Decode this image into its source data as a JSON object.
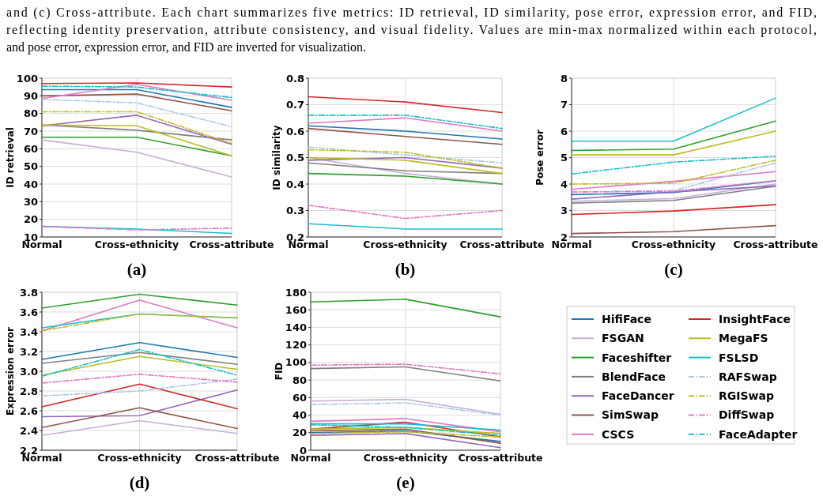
{
  "chart_data": [
    {
      "type": "line",
      "title": "(a)",
      "ylabel": "ID retrieval",
      "categories": [
        "Normal",
        "Cross-ethnicity",
        "Cross-attribute"
      ],
      "ylim": [
        10,
        100
      ],
      "yticks": [
        10,
        20,
        30,
        40,
        50,
        60,
        70,
        80,
        90,
        100
      ],
      "grid": true,
      "legend": false,
      "annotations": [
        "and (c) Cross-attribute. Each chart summarizes five metrics: ID retrieval, ID similarity, pose error, expression error, and FID,",
        "reflecting identity preservation, attribute consistency, and visual fidelity. Values are min-max normalized within each protocol,",
        "and pose error, expression error, and FID are inverted for visualization."
      ],
      "series": [
        {
          "color": "#1f77b4",
          "line_style": "solid",
          "values": [
            93.5,
            93.5,
            83.5
          ]
        },
        {
          "color": "#c5b0d5",
          "line_style": "solid",
          "values": [
            65,
            58,
            44
          ]
        },
        {
          "color": "#2ca02c",
          "line_style": "solid",
          "values": [
            66.5,
            66.5,
            56
          ]
        },
        {
          "color": "#7f7f7f",
          "line_style": "solid",
          "values": [
            73.5,
            70.5,
            65
          ]
        },
        {
          "color": "#9467bd",
          "line_style": "solid",
          "values": [
            73,
            79,
            62.5
          ]
        },
        {
          "color": "#8c564b",
          "line_style": "solid",
          "values": [
            90,
            91,
            81.5
          ]
        },
        {
          "color": "#e377c2",
          "line_style": "solid",
          "values": [
            88.5,
            96.5,
            87.5
          ]
        },
        {
          "color": "#d62728",
          "line_style": "solid",
          "values": [
            97,
            97.3,
            95
          ]
        },
        {
          "color": "#bcbd22",
          "line_style": "solid",
          "values": [
            73.5,
            73,
            56
          ]
        },
        {
          "color": "#17becf",
          "line_style": "solid",
          "values": [
            16,
            14.5,
            12
          ]
        },
        {
          "color": "#aec7e8",
          "line_style": "dashed",
          "values": [
            88,
            86,
            72.5
          ]
        },
        {
          "color": "#bcbd22",
          "line_style": "dashed",
          "values": [
            81,
            81,
            63
          ]
        },
        {
          "color": "#e377c2",
          "line_style": "dashed",
          "values": [
            16,
            14,
            15
          ]
        },
        {
          "color": "#17becf",
          "line_style": "dashed",
          "values": [
            95.5,
            95,
            89
          ]
        }
      ]
    },
    {
      "type": "line",
      "title": "(b)",
      "ylabel": "ID similarity",
      "categories": [
        "Normal",
        "Cross-ethnicity",
        "Cross-attribute"
      ],
      "ylim": [
        0.2,
        0.8
      ],
      "yticks": [
        0.2,
        0.3,
        0.4,
        0.5,
        0.6,
        0.7,
        0.8
      ],
      "grid": true,
      "legend": false,
      "series": [
        {
          "color": "#1f77b4",
          "line_style": "solid",
          "values": [
            0.62,
            0.6,
            0.57
          ]
        },
        {
          "color": "#c5b0d5",
          "line_style": "solid",
          "values": [
            0.5,
            0.44,
            0.4
          ]
        },
        {
          "color": "#2ca02c",
          "line_style": "solid",
          "values": [
            0.44,
            0.43,
            0.4
          ]
        },
        {
          "color": "#7f7f7f",
          "line_style": "solid",
          "values": [
            0.48,
            0.45,
            0.44
          ]
        },
        {
          "color": "#9467bd",
          "line_style": "solid",
          "values": [
            0.49,
            0.5,
            0.46
          ]
        },
        {
          "color": "#8c564b",
          "line_style": "solid",
          "values": [
            0.61,
            0.58,
            0.55
          ]
        },
        {
          "color": "#e377c2",
          "line_style": "solid",
          "values": [
            0.63,
            0.65,
            0.6
          ]
        },
        {
          "color": "#d62728",
          "line_style": "solid",
          "values": [
            0.73,
            0.71,
            0.67
          ]
        },
        {
          "color": "#bcbd22",
          "line_style": "solid",
          "values": [
            0.5,
            0.49,
            0.44
          ]
        },
        {
          "color": "#17becf",
          "line_style": "solid",
          "values": [
            0.25,
            0.23,
            0.23
          ]
        },
        {
          "color": "#aec7e8",
          "line_style": "dashed",
          "values": [
            0.54,
            0.51,
            0.48
          ]
        },
        {
          "color": "#bcbd22",
          "line_style": "dashed",
          "values": [
            0.53,
            0.52,
            0.46
          ]
        },
        {
          "color": "#e377c2",
          "line_style": "dashed",
          "values": [
            0.32,
            0.27,
            0.3
          ]
        },
        {
          "color": "#17becf",
          "line_style": "dashed",
          "values": [
            0.66,
            0.66,
            0.61
          ]
        }
      ]
    },
    {
      "type": "line",
      "title": "(c)",
      "ylabel": "Pose error",
      "categories": [
        "Normal",
        "Cross-ethnicity",
        "Cross-attribute"
      ],
      "ylim": [
        2,
        8
      ],
      "yticks": [
        2,
        3,
        4,
        5,
        6,
        7,
        8
      ],
      "grid": true,
      "legend": false,
      "series": [
        {
          "color": "#1f77b4",
          "line_style": "solid",
          "values": [
            3.6,
            3.68,
            4.12
          ]
        },
        {
          "color": "#c5b0d5",
          "line_style": "solid",
          "values": [
            3.35,
            3.45,
            4
          ]
        },
        {
          "color": "#2ca02c",
          "line_style": "solid",
          "values": [
            5.27,
            5.32,
            6.38
          ]
        },
        {
          "color": "#7f7f7f",
          "line_style": "solid",
          "values": [
            3.28,
            3.38,
            3.92
          ]
        },
        {
          "color": "#9467bd",
          "line_style": "solid",
          "values": [
            3.43,
            3.7,
            3.93
          ]
        },
        {
          "color": "#8c564b",
          "line_style": "solid",
          "values": [
            2.13,
            2.2,
            2.43
          ]
        },
        {
          "color": "#e377c2",
          "line_style": "solid",
          "values": [
            3.8,
            4.1,
            4.47
          ]
        },
        {
          "color": "#d62728",
          "line_style": "solid",
          "values": [
            2.85,
            2.98,
            3.22
          ]
        },
        {
          "color": "#bcbd22",
          "line_style": "solid",
          "values": [
            5.1,
            5.1,
            6
          ]
        },
        {
          "color": "#17becf",
          "line_style": "solid",
          "values": [
            5.62,
            5.62,
            7.25
          ]
        },
        {
          "color": "#aec7e8",
          "line_style": "dashed",
          "values": [
            3.7,
            3.75,
            4.8
          ]
        },
        {
          "color": "#bcbd22",
          "line_style": "dashed",
          "values": [
            4,
            4.03,
            4.9
          ]
        },
        {
          "color": "#e377c2",
          "line_style": "dashed",
          "values": [
            3.7,
            3.73,
            4.13
          ]
        },
        {
          "color": "#17becf",
          "line_style": "dashed",
          "values": [
            4.38,
            4.83,
            5.05
          ]
        }
      ]
    },
    {
      "type": "line",
      "title": "(d)",
      "ylabel": "Expression error",
      "categories": [
        "Normal",
        "Cross-ethnicity",
        "Cross-attribute"
      ],
      "ylim": [
        2.2,
        3.8
      ],
      "yticks": [
        {
          "value": 2.2,
          "label": "2.2"
        },
        {
          "value": 2.4,
          "label": "2.4"
        },
        {
          "value": 2.6,
          "label": "2.6"
        },
        {
          "value": 2.8,
          "label": "2.8"
        },
        {
          "value": 3,
          "label": "3.0"
        },
        {
          "value": 3.2,
          "label": "3.2"
        },
        {
          "value": 3.4,
          "label": "3.4"
        },
        {
          "value": 3.6,
          "label": "3.6"
        },
        {
          "value": 3.8,
          "label": "3.8"
        }
      ],
      "grid": true,
      "legend": false,
      "series": [
        {
          "color": "#1f77b4",
          "line_style": "solid",
          "values": [
            3.12,
            3.29,
            3.14
          ]
        },
        {
          "color": "#c5b0d5",
          "line_style": "solid",
          "values": [
            2.35,
            2.5,
            2.37
          ]
        },
        {
          "color": "#2ca02c",
          "line_style": "solid",
          "values": [
            3.64,
            3.78,
            3.67
          ]
        },
        {
          "color": "#7f7f7f",
          "line_style": "solid",
          "values": [
            3.08,
            3.19,
            3.07
          ]
        },
        {
          "color": "#9467bd",
          "line_style": "solid",
          "values": [
            2.54,
            2.55,
            2.81
          ]
        },
        {
          "color": "#8c564b",
          "line_style": "solid",
          "values": [
            2.43,
            2.63,
            2.42
          ]
        },
        {
          "color": "#e377c2",
          "line_style": "solid",
          "values": [
            3.41,
            3.72,
            3.44
          ]
        },
        {
          "color": "#d62728",
          "line_style": "solid",
          "values": [
            2.64,
            2.87,
            2.62
          ]
        },
        {
          "color": "#bcbd22",
          "line_style": "solid",
          "values": [
            2.96,
            3.15,
            3.02
          ]
        },
        {
          "color": "#17becf",
          "line_style": "solid",
          "values": [
            3.44,
            3.58,
            3.54
          ]
        },
        {
          "color": "#aec7e8",
          "line_style": "dashed",
          "values": [
            2.75,
            2.8,
            2.92
          ]
        },
        {
          "color": "#bcbd22",
          "line_style": "dashed",
          "values": [
            3.41,
            3.58,
            3.54
          ]
        },
        {
          "color": "#e377c2",
          "line_style": "dashed",
          "values": [
            2.88,
            2.97,
            2.89
          ]
        },
        {
          "color": "#17becf",
          "line_style": "dashed",
          "values": [
            2.95,
            3.22,
            2.96
          ]
        }
      ]
    },
    {
      "type": "line",
      "title": "(e)",
      "ylabel": "FID",
      "categories": [
        "Normal",
        "Cross-ethnicity",
        "Cross-attribute"
      ],
      "ylim": [
        0,
        180
      ],
      "yticks": [
        0,
        20,
        40,
        60,
        80,
        100,
        120,
        140,
        160,
        180
      ],
      "grid": true,
      "legend": "right",
      "series": [
        {
          "name": "HifiFace",
          "color": "#1f77b4",
          "line_style": "solid",
          "values": [
            20,
            22,
            10
          ]
        },
        {
          "name": "FSGAN",
          "color": "#c5b0d5",
          "line_style": "solid",
          "values": [
            56,
            58,
            41
          ]
        },
        {
          "name": "Faceshifter",
          "color": "#2ca02c",
          "line_style": "solid",
          "values": [
            169,
            172,
            152
          ]
        },
        {
          "name": "BlendFace",
          "color": "#7f7f7f",
          "line_style": "solid",
          "values": [
            93,
            95,
            79
          ]
        },
        {
          "name": "FaceDancer",
          "color": "#9467bd",
          "line_style": "solid",
          "values": [
            17,
            19,
            3
          ]
        },
        {
          "name": "SimSwap",
          "color": "#8c564b",
          "line_style": "solid",
          "values": [
            22,
            24,
            8
          ]
        },
        {
          "name": "CSCS",
          "color": "#e377c2",
          "line_style": "solid",
          "values": [
            33,
            36,
            21
          ]
        },
        {
          "name": "InsightFace",
          "color": "#d62728",
          "line_style": "solid",
          "values": [
            24,
            32,
            15
          ]
        },
        {
          "name": "MegaFS",
          "color": "#bcbd22",
          "line_style": "solid",
          "values": [
            24,
            26,
            19
          ]
        },
        {
          "name": "FSLSD",
          "color": "#17becf",
          "line_style": "solid",
          "values": [
            30,
            30,
            23
          ]
        },
        {
          "name": "RAFSwap",
          "color": "#aec7e8",
          "line_style": "dashed",
          "values": [
            52,
            54,
            40
          ]
        },
        {
          "name": "RGISwap",
          "color": "#bcbd22",
          "line_style": "dashed",
          "values": [
            19,
            21,
            15
          ]
        },
        {
          "name": "DiffSwap",
          "color": "#e377c2",
          "line_style": "dashed",
          "values": [
            97,
            98,
            87
          ]
        },
        {
          "name": "FaceAdapter",
          "color": "#17becf",
          "line_style": "dashed",
          "values": [
            29,
            26,
            17
          ]
        }
      ]
    }
  ]
}
